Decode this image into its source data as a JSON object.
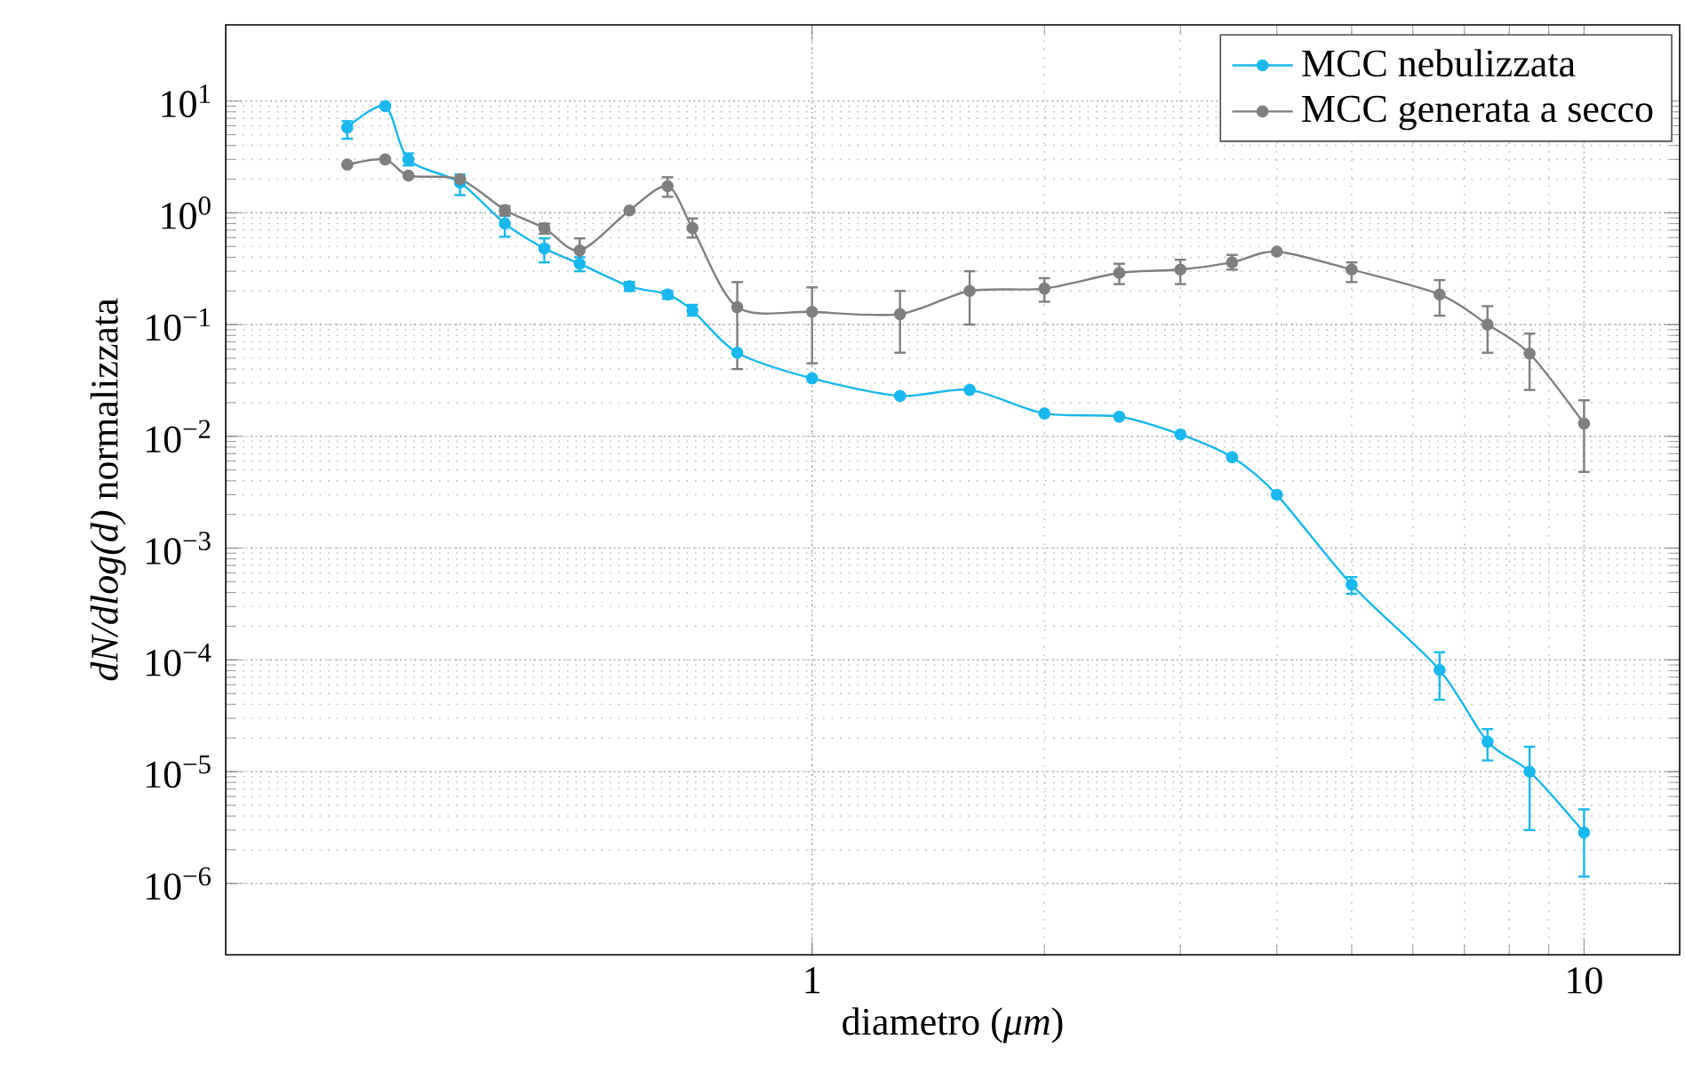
{
  "chart_data": {
    "type": "line",
    "xlabel": "diametro (*μm*)",
    "ylabel": "*dN/dlog(d)* normalizzata",
    "log": "xy",
    "grid": true,
    "legend": "top right",
    "marker": "circle",
    "line_style": "solid",
    "xlim": [
      0.174,
      13.3
    ],
    "ylim": [
      2.3e-07,
      48
    ],
    "xticks": [
      1,
      10
    ],
    "yticks": [
      {
        "value": 1e-06,
        "label": "10$^{−6}$"
      },
      {
        "value": 1e-05,
        "label": "10$^{−5}$"
      },
      {
        "value": 0.0001,
        "label": "10$^{−4}$"
      },
      {
        "value": 0.001,
        "label": "10$^{−3}$"
      },
      {
        "value": 0.01,
        "label": "10$^{−2}$"
      },
      {
        "value": 0.1,
        "label": "10$^{−1}$"
      },
      {
        "value": 1,
        "label": "10$^{0}$"
      },
      {
        "value": 10,
        "label": "10$^{1}$"
      }
    ],
    "x": [
      0.25,
      0.28,
      0.3,
      0.35,
      0.4,
      0.45,
      0.5,
      0.58,
      0.65,
      0.7,
      0.8,
      1.0,
      1.3,
      1.6,
      2.0,
      2.5,
      3.0,
      3.5,
      4.0,
      5.0,
      6.5,
      7.5,
      8.5,
      10
    ],
    "series": [
      {
        "name": "MCC nebulizzata",
        "color": "#19b8ee",
        "values": [
          5.8,
          9.0,
          3.0,
          1.86,
          0.8,
          0.48,
          0.35,
          0.22,
          0.186,
          0.134,
          0.056,
          0.033,
          0.023,
          0.026,
          0.016,
          0.015,
          0.0104,
          0.0065,
          0.003,
          0.00047,
          8.1e-05,
          1.85e-05,
          1e-05,
          2.85e-06
        ],
        "errors": [
          [
            4.6,
            6.6
          ],
          null,
          [
            2.65,
            3.4
          ],
          [
            1.44,
            2.2
          ],
          [
            0.61,
            0.94
          ],
          [
            0.36,
            0.59
          ],
          [
            0.3,
            0.4
          ],
          [
            0.2,
            0.24
          ],
          [
            0.17,
            0.2
          ],
          [
            0.12,
            0.15
          ],
          null,
          null,
          null,
          null,
          null,
          null,
          null,
          null,
          null,
          [
            0.00039,
            0.00055
          ],
          [
            4.4e-05,
            0.000117
          ],
          [
            1.26e-05,
            2.4e-05
          ],
          [
            3e-06,
            1.67e-05
          ],
          [
            1.15e-06,
            4.6e-06
          ]
        ]
      },
      {
        "name": "MCC generata a secco",
        "color": "#7f7f7f",
        "values": [
          2.7,
          3.0,
          2.15,
          2.0,
          1.06,
          0.73,
          0.46,
          1.05,
          1.73,
          0.73,
          0.143,
          0.13,
          0.124,
          0.2,
          0.21,
          0.29,
          0.31,
          0.36,
          0.45,
          0.31,
          0.186,
          0.1,
          0.055,
          0.013
        ],
        "errors": [
          null,
          null,
          null,
          null,
          [
            0.95,
            1.15
          ],
          [
            0.65,
            0.8
          ],
          [
            0.36,
            0.59
          ],
          null,
          [
            1.39,
            2.08
          ],
          [
            0.6,
            0.89
          ],
          [
            0.04,
            0.24
          ],
          [
            0.045,
            0.215
          ],
          [
            0.056,
            0.2
          ],
          [
            0.1,
            0.3
          ],
          [
            0.16,
            0.26
          ],
          [
            0.23,
            0.35
          ],
          [
            0.23,
            0.38
          ],
          [
            0.31,
            0.42
          ],
          null,
          [
            0.24,
            0.36
          ],
          [
            0.12,
            0.25
          ],
          [
            0.056,
            0.146
          ],
          [
            0.026,
            0.083
          ],
          [
            0.0048,
            0.021
          ]
        ]
      }
    ]
  }
}
